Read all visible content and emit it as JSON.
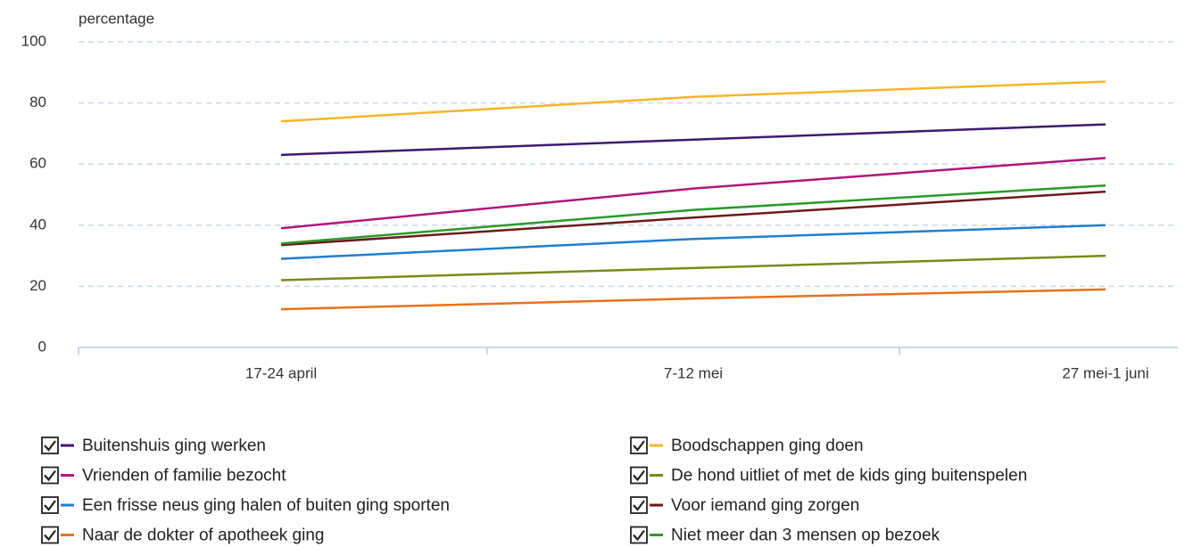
{
  "chart_data": {
    "type": "line",
    "y_label": "percentage",
    "categories": [
      "17-24 april",
      "7-12 mei",
      "27 mei-1 juni"
    ],
    "series": [
      {
        "name": "Buitenshuis ging werken",
        "color": "#3d1a6e",
        "values": [
          63,
          68,
          73
        ]
      },
      {
        "name": "Vrienden of familie bezocht",
        "color": "#b0157a",
        "values": [
          39,
          52,
          62
        ]
      },
      {
        "name": "Een frisse neus ging halen of buiten ging sporten",
        "color": "#1f7fd0",
        "values": [
          29,
          35.5,
          40
        ]
      },
      {
        "name": "Naar de dokter of apotheek ging",
        "color": "#e8711a",
        "values": [
          12.5,
          16,
          19
        ]
      },
      {
        "name": "Boodschappen ging doen",
        "color": "#f7b525",
        "values": [
          74,
          82,
          87
        ]
      },
      {
        "name": "De hond uitliet of met de kids ging buitenspelen",
        "color": "#7a8a1a",
        "values": [
          22,
          26,
          30
        ]
      },
      {
        "name": "Voor iemand ging zorgen",
        "color": "#6b1a1a",
        "values": [
          33.5,
          42.5,
          51
        ]
      },
      {
        "name": "Niet meer dan 3 mensen op bezoek",
        "color": "#2a9a2a",
        "values": [
          34,
          45,
          53
        ]
      }
    ],
    "ylim": [
      0,
      100
    ],
    "yticks": [
      0,
      20,
      40,
      60,
      80,
      100
    ],
    "grid": true
  }
}
